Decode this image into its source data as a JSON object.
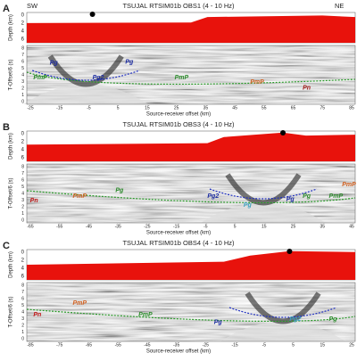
{
  "panels": [
    {
      "label": "A",
      "title": "TSUJAL RTSIM01b OBS1 (4 - 10 Hz)",
      "side_labels": [
        "SW",
        "NE"
      ],
      "depth_label": "Depth (km)",
      "depth_ticks": [
        "0",
        "2",
        "4",
        "6"
      ],
      "time_label": "T-Offset/6 (s)",
      "time_ticks": [
        "8",
        "7",
        "6",
        "5",
        "4",
        "3",
        "2",
        "1",
        "0"
      ],
      "x_label": "Source-receiver offset (km)",
      "x_ticks": [
        "-25",
        "-15",
        "-5",
        "5",
        "15",
        "25",
        "35",
        "45",
        "55",
        "65",
        "75",
        "85"
      ],
      "phases": [
        "PmP",
        "Pg",
        "Pg2",
        "Pg",
        "PmP",
        "PmP",
        "Pn"
      ]
    },
    {
      "label": "B",
      "title": "TSUJAL RTSIM01b OBS3 (4 - 10 Hz)",
      "depth_label": "Depth (km)",
      "depth_ticks": [
        "0",
        "2",
        "4",
        "6"
      ],
      "time_label": "T-Offset/6 (s)",
      "time_ticks": [
        "8",
        "7",
        "6",
        "5",
        "4",
        "3",
        "2",
        "1",
        "0"
      ],
      "x_label": "Source-receiver offset (km)",
      "x_ticks": [
        "-65",
        "-55",
        "-45",
        "-35",
        "-25",
        "-15",
        "-5",
        "5",
        "15",
        "25",
        "35",
        "45"
      ],
      "phases": [
        "Pn",
        "PmP",
        "Pg",
        "Pg2",
        "Pg",
        "Pg",
        "Pg",
        "PmP",
        "PmP"
      ]
    },
    {
      "label": "C",
      "title": "TSUJAL RTSIM01b OBS4 (4 - 10 Hz)",
      "depth_label": "Depth (km)",
      "depth_ticks": [
        "0",
        "2",
        "4",
        "6"
      ],
      "time_label": "T-Offset/6 (s)",
      "time_ticks": [
        "8",
        "7",
        "6",
        "5",
        "4",
        "3",
        "2",
        "1",
        "0"
      ],
      "x_label": "Source-receiver offset (km)",
      "x_ticks": [
        "-85",
        "-75",
        "-65",
        "-55",
        "-45",
        "-35",
        "-25",
        "-15",
        "-5",
        "5",
        "15",
        "25"
      ],
      "phases": [
        "Pn",
        "PmP",
        "PmP",
        "Pg",
        "Pg2",
        "Pg"
      ]
    }
  ]
}
